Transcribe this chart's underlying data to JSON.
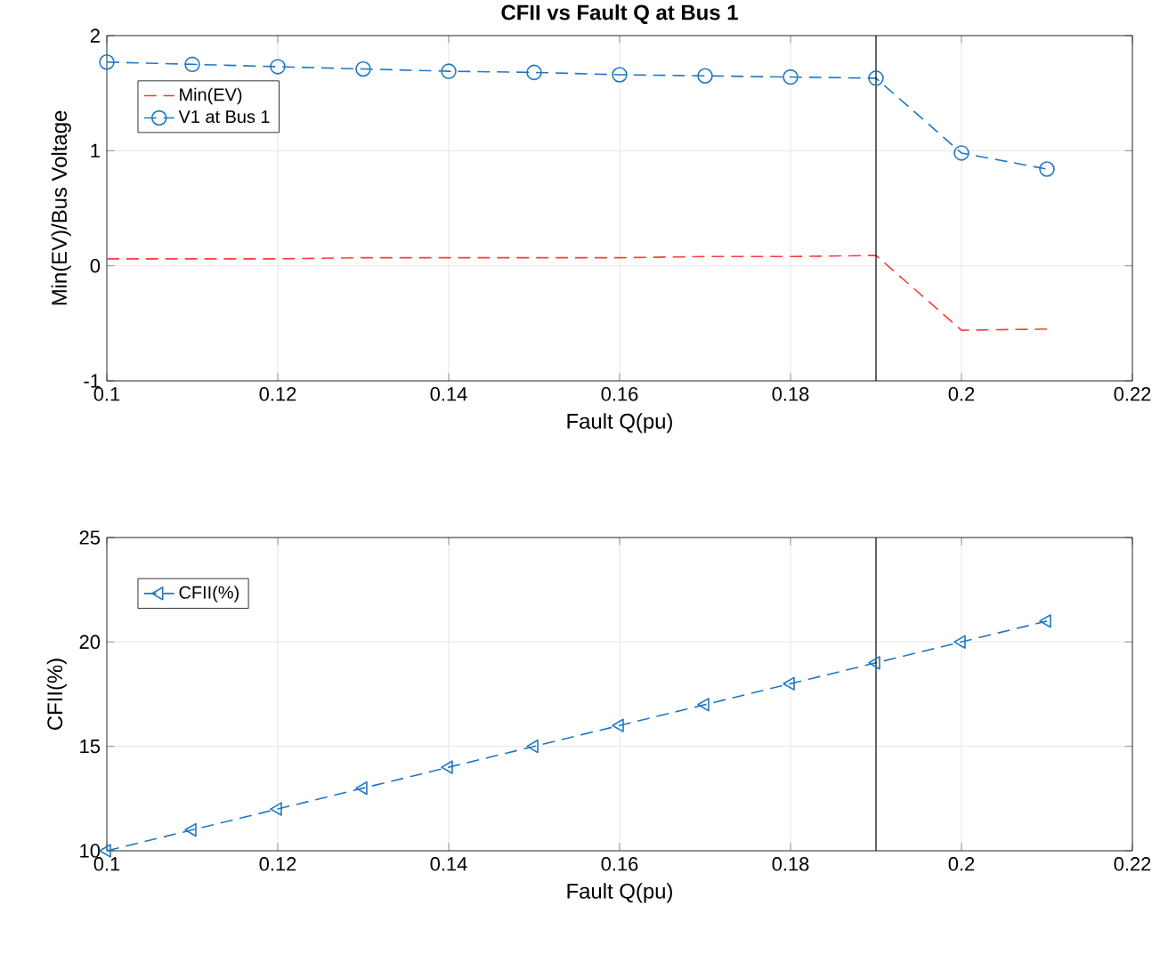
{
  "chart_data": [
    {
      "type": "line",
      "title": "CFII vs Fault Q at Bus 1",
      "xlabel": "Fault Q(pu)",
      "ylabel": "Min(EV)/Bus Voltage",
      "x": [
        0.1,
        0.11,
        0.12,
        0.13,
        0.14,
        0.15,
        0.16,
        0.17,
        0.18,
        0.19,
        0.2,
        0.21
      ],
      "series": [
        {
          "name": "Min(EV)",
          "color": "#ff3b3b",
          "line_style": "dashed",
          "marker": "none",
          "values": [
            0.06,
            0.06,
            0.06,
            0.07,
            0.07,
            0.07,
            0.07,
            0.08,
            0.08,
            0.09,
            -0.56,
            -0.55
          ]
        },
        {
          "name": "V1 at Bus 1",
          "color": "#1f77c4",
          "line_style": "dashed",
          "marker": "circle",
          "values": [
            1.77,
            1.75,
            1.73,
            1.71,
            1.69,
            1.68,
            1.66,
            1.65,
            1.64,
            1.63,
            0.98,
            0.84
          ]
        }
      ],
      "xlim": [
        0.1,
        0.22
      ],
      "xticks": [
        0.1,
        0.12,
        0.14,
        0.16,
        0.18,
        0.2,
        0.22
      ],
      "ylim": [
        -1,
        2
      ],
      "yticks": [
        -1,
        0,
        1,
        2
      ],
      "ref_lines": [
        {
          "axis": "x",
          "value": 0.19,
          "color": "#000000"
        }
      ],
      "grid": true,
      "legend": "top left"
    },
    {
      "type": "line",
      "xlabel": "Fault Q(pu)",
      "ylabel": "CFII(%)",
      "x": [
        0.1,
        0.11,
        0.12,
        0.13,
        0.14,
        0.15,
        0.16,
        0.17,
        0.18,
        0.19,
        0.2,
        0.21
      ],
      "series": [
        {
          "name": "CFII(%)",
          "color": "#1f77c4",
          "line_style": "dashed",
          "marker": "triangle",
          "values": [
            10,
            11,
            12,
            13,
            14,
            15,
            16,
            17,
            18,
            19,
            20,
            21
          ]
        }
      ],
      "xlim": [
        0.1,
        0.22
      ],
      "xticks": [
        0.1,
        0.12,
        0.14,
        0.16,
        0.18,
        0.2,
        0.22
      ],
      "ylim": [
        10,
        25
      ],
      "yticks": [
        10,
        15,
        20,
        25
      ],
      "ref_lines": [
        {
          "axis": "x",
          "value": 0.19,
          "color": "#000000"
        }
      ],
      "grid": true,
      "legend": "top left"
    }
  ]
}
